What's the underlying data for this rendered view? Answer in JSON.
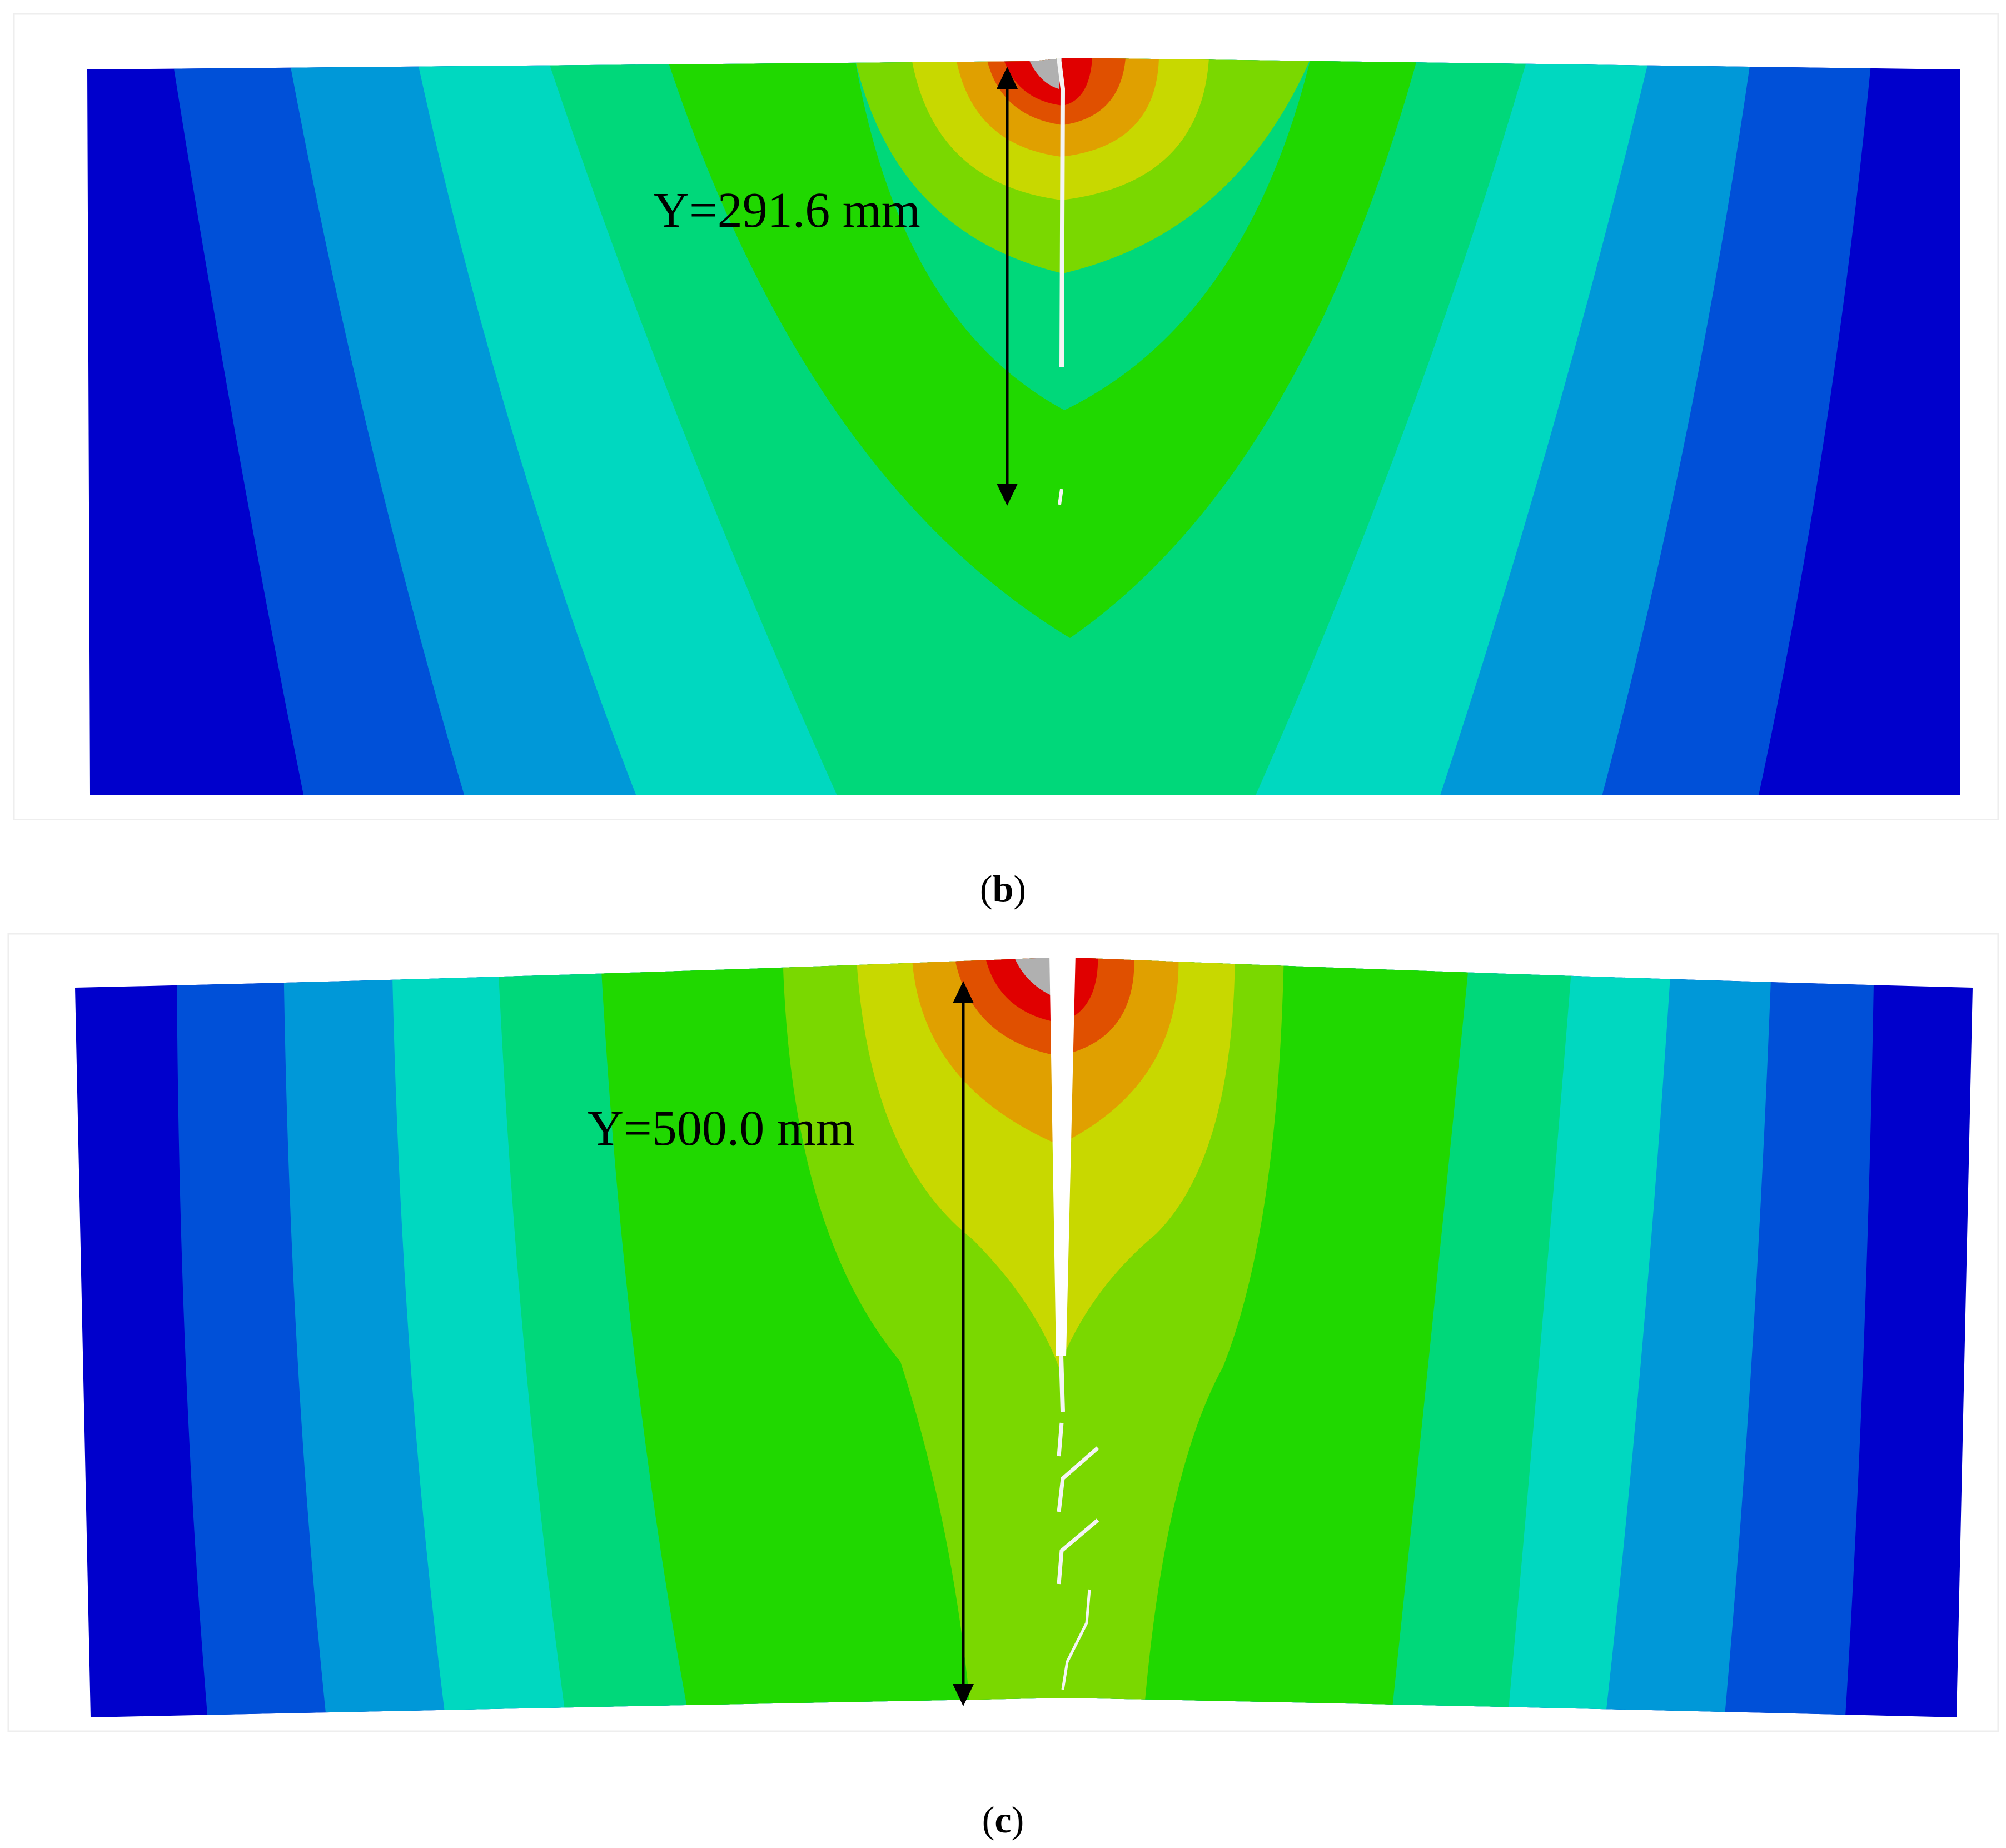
{
  "panels": [
    {
      "id": "b",
      "caption": "b",
      "dimension_label": "Y=291.6 mm"
    },
    {
      "id": "c",
      "caption": "c",
      "dimension_label": "Y=500.0 mm"
    }
  ],
  "contour_colors": [
    "#0000cc",
    "#0050d8",
    "#0098d8",
    "#00d8c0",
    "#00d87a",
    "#20d800",
    "#7ad800",
    "#c8d800",
    "#e0a000",
    "#e05000",
    "#e00000",
    "#b0b0b0"
  ]
}
